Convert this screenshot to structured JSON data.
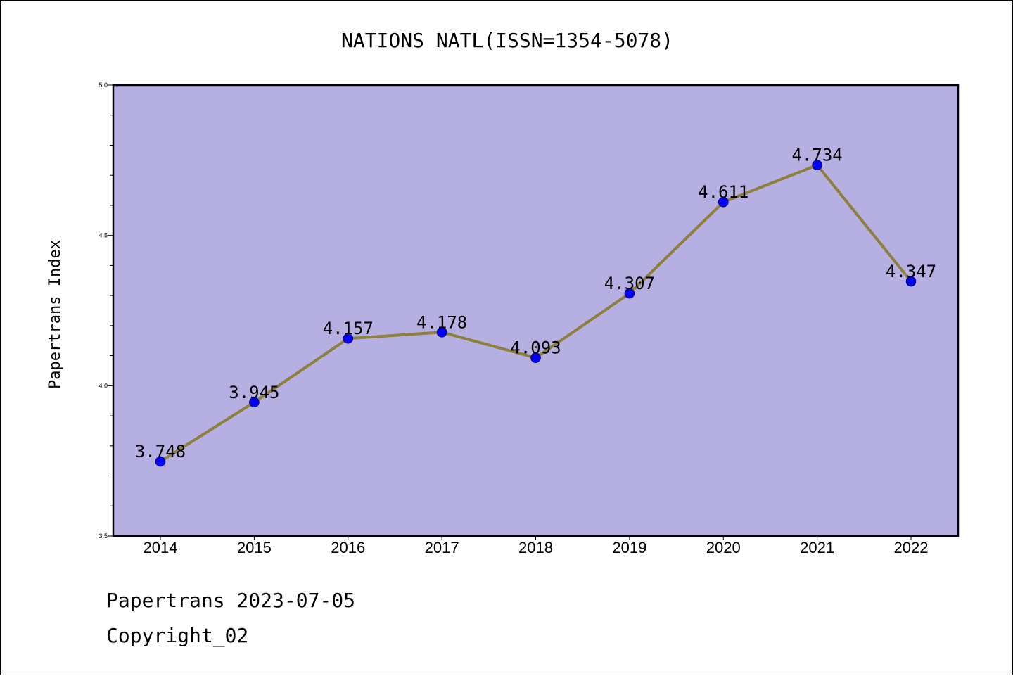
{
  "footer": {
    "line1": "Papertrans 2023-07-05",
    "line2": "Copyright_02"
  },
  "colors": {
    "plot_background": "#b5afe2",
    "line": "#8f7f3c",
    "marker": "#0000ff"
  },
  "chart_data": {
    "type": "line",
    "title": "NATIONS NATL(ISSN=1354-5078)",
    "xlabel": "",
    "ylabel": "Papertrans Index",
    "categories": [
      "2014",
      "2015",
      "2016",
      "2017",
      "2018",
      "2019",
      "2020",
      "2021",
      "2022"
    ],
    "series": [
      {
        "values": [
          3.748,
          3.945,
          4.157,
          4.178,
          4.093,
          4.307,
          4.611,
          4.734,
          4.347
        ],
        "labels": [
          "3.748",
          "3.945",
          "4.157",
          "4.178",
          "4.093",
          "4.307",
          "4.611",
          "4.734",
          "4.347"
        ]
      }
    ],
    "ylim": [
      3.5,
      5.0
    ],
    "yticks": [
      "3.5",
      "4.0",
      "4.5",
      "5.0"
    ],
    "grid": false,
    "legend": "none"
  }
}
